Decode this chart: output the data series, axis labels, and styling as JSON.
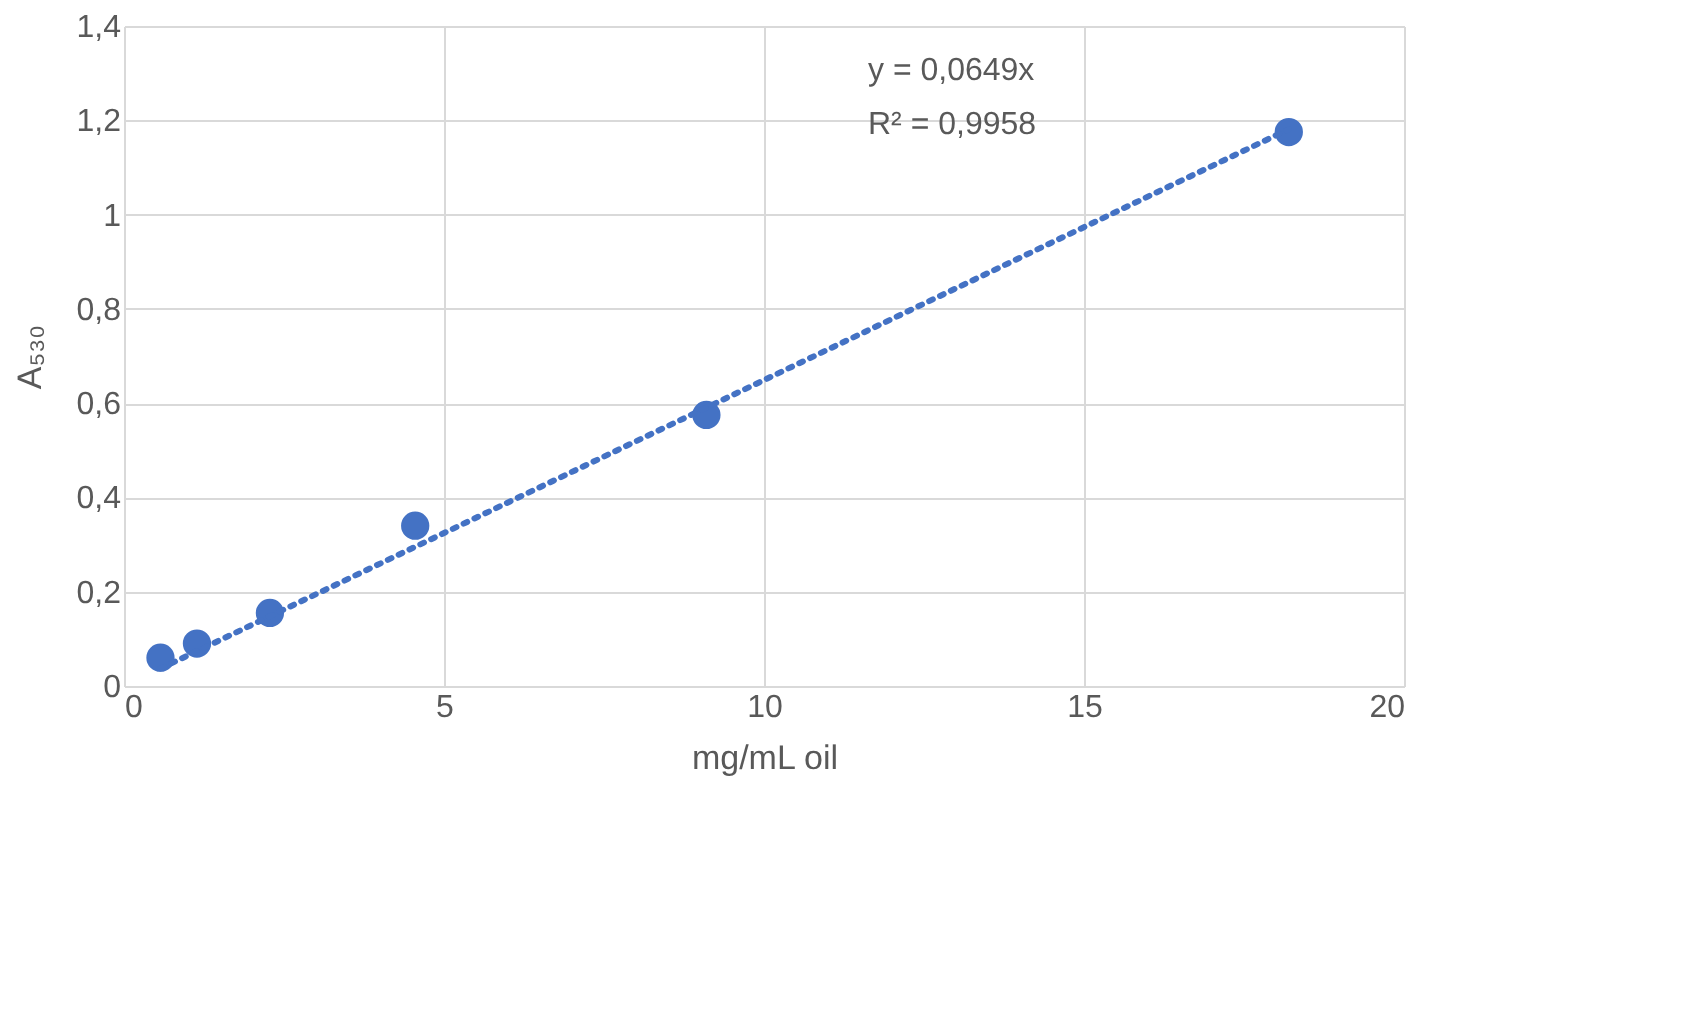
{
  "chart_data": {
    "type": "scatter",
    "xlabel": "mg/mL oil",
    "ylabel": "A₅₃₀",
    "xlim": [
      0,
      20
    ],
    "xticks": [
      0,
      5,
      10,
      15,
      20
    ],
    "ylim": [
      0,
      1.4
    ],
    "yticks": [
      {
        "value": 0,
        "label": "0"
      },
      {
        "value": 0.2,
        "label": "0,2"
      },
      {
        "value": 0.4,
        "label": "0,4"
      },
      {
        "value": 0.6,
        "label": "0,6"
      },
      {
        "value": 0.8,
        "label": "0,8"
      },
      {
        "value": 1,
        "label": "1"
      },
      {
        "value": 1.2,
        "label": "1,2"
      },
      {
        "value": 1.4,
        "label": "1,4"
      }
    ],
    "grid": true,
    "series": [
      {
        "type": "scatter",
        "color": "#4472c4",
        "marker": "circle",
        "x": [
          0.57,
          1.14,
          2.28,
          4.55,
          9.1,
          18.2
        ],
        "values": [
          0.06,
          0.09,
          0.155,
          0.34,
          0.575,
          1.175
        ]
      },
      {
        "type": "line",
        "color": "#4472c4",
        "line_style": "dotted",
        "x": [
          0.57,
          18.2
        ],
        "values": [
          0.037,
          1.181
        ]
      }
    ],
    "annotations": [
      "y = 0,0649x",
      "R² = 0,9958"
    ]
  }
}
